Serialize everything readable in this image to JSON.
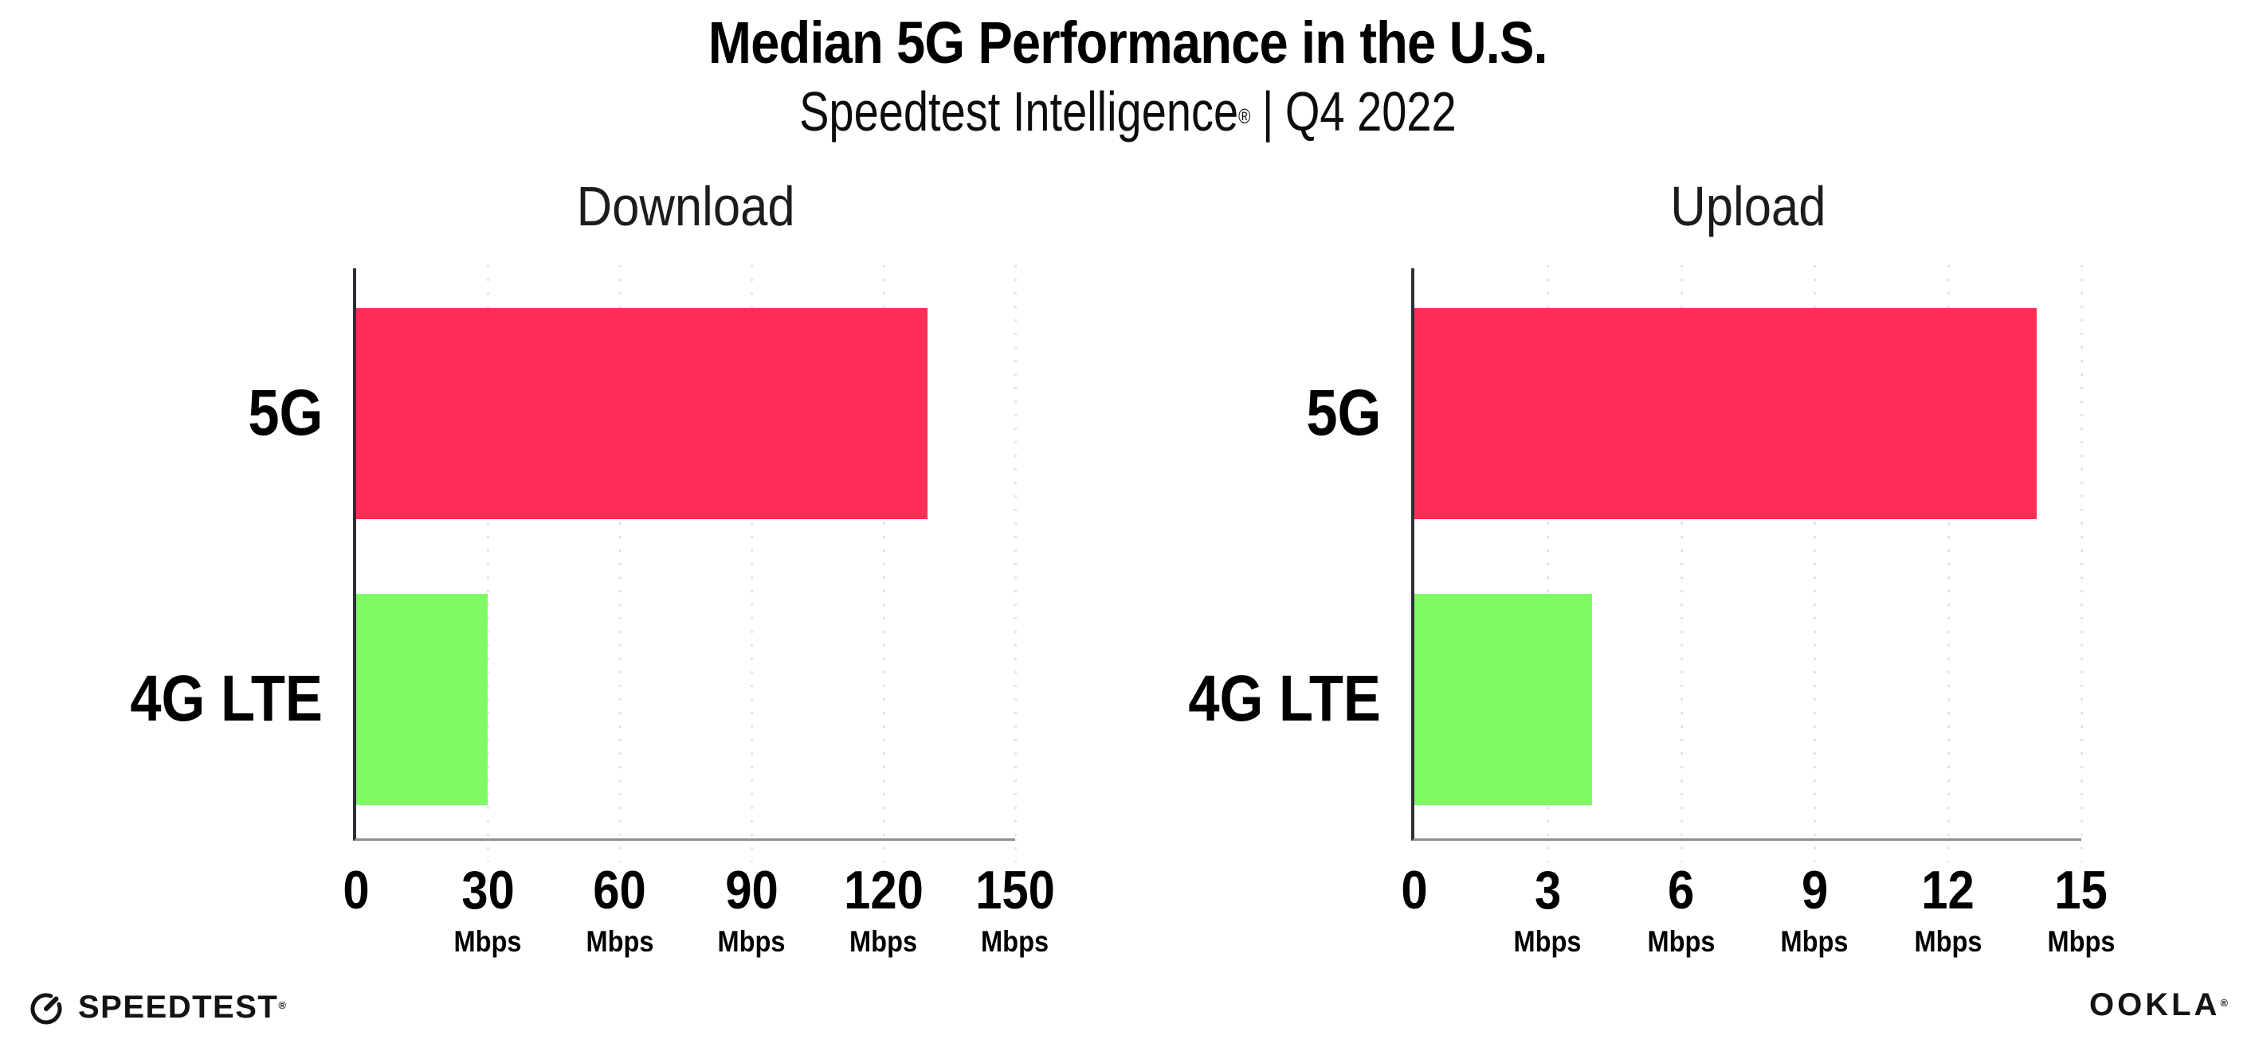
{
  "header": {
    "title": "Median 5G Performance in the U.S.",
    "subtitle_brand": "Speedtest Intelligence",
    "subtitle_reg": "®",
    "subtitle_separator": "|",
    "subtitle_period": "Q4 2022"
  },
  "chart_data": [
    {
      "type": "bar",
      "orientation": "horizontal",
      "title": "Download",
      "categories": [
        "5G",
        "4G LTE"
      ],
      "values": [
        130,
        30
      ],
      "unit": "Mbps",
      "xlim": [
        0,
        150
      ],
      "xticks": [
        0,
        30,
        60,
        90,
        120,
        150
      ],
      "grid": "dotted-vertical-gridlines",
      "legend": "none",
      "bar_colors": [
        "#FF2D55",
        "#7DFA64"
      ]
    },
    {
      "type": "bar",
      "orientation": "horizontal",
      "title": "Upload",
      "categories": [
        "5G",
        "4G LTE"
      ],
      "values": [
        14,
        4
      ],
      "unit": "Mbps",
      "xlim": [
        0,
        15
      ],
      "xticks": [
        0,
        3,
        6,
        9,
        12,
        15
      ],
      "grid": "dotted-vertical-gridlines",
      "legend": "none",
      "bar_colors": [
        "#FF2D55",
        "#7DFA64"
      ]
    }
  ],
  "colors": {
    "bar_5g": "#FF2D55",
    "bar_4g_lte": "#7DFA64",
    "gridline": "#E2E2EE",
    "axis_x_line": "#8F8F8F",
    "axis_y_line": "#2E2E36",
    "background": "#FFFFFF"
  },
  "footer": {
    "speedtest_wordmark": "SPEEDTEST",
    "speedtest_reg": "®",
    "ookla_wordmark": "OOKLA",
    "ookla_reg": "®"
  }
}
